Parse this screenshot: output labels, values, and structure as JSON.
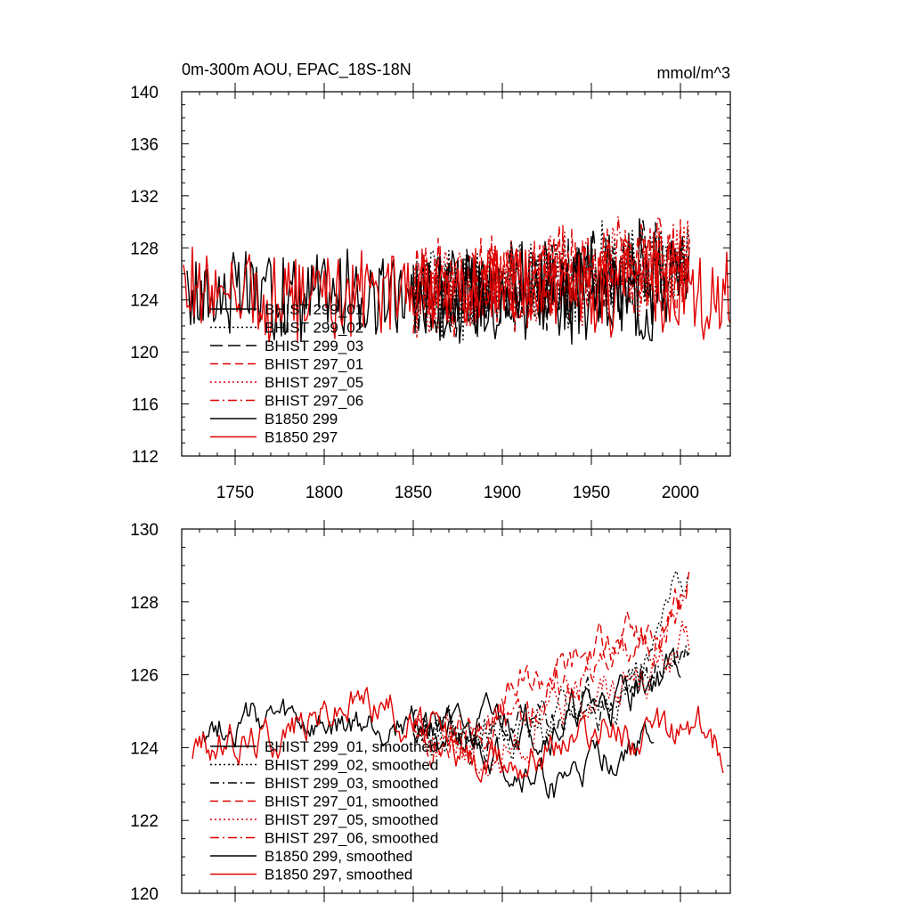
{
  "chart_data": [
    {
      "type": "line",
      "title": "0m-300m AOU, EPAC_18S-18N",
      "units_label": "mmol/m^3",
      "xlim": [
        1720,
        2028
      ],
      "ylim": [
        112,
        140
      ],
      "x_ticks": [
        1750,
        1800,
        1850,
        1900,
        1950,
        2000
      ],
      "x_tick_labels": [
        "1750",
        "1800",
        "1850",
        "1900",
        "1950",
        "2000"
      ],
      "y_ticks": [
        112,
        116,
        120,
        124,
        128,
        132,
        136,
        140
      ],
      "y_tick_labels": [
        "112",
        "116",
        "120",
        "124",
        "128",
        "132",
        "136",
        "140"
      ],
      "legend": [
        "BHIST 299_01",
        "BHIST 299_02",
        "BHIST 299_03",
        "BHIST 297_01",
        "BHIST 297_05",
        "BHIST 297_06",
        "B1850 299",
        "B1850 297"
      ],
      "series": [
        {
          "name": "BHIST 299_01",
          "color": "#000000",
          "dash": "solid",
          "x_start": 1850,
          "x_end": 2005,
          "seed": 11,
          "amp": 3.2,
          "trend": [
            124.5,
            126.5
          ],
          "period": 1
        },
        {
          "name": "BHIST 299_02",
          "color": "#000000",
          "dash": "dot",
          "x_start": 1850,
          "x_end": 2005,
          "seed": 12,
          "amp": 3.2,
          "trend": [
            124.5,
            126.8
          ],
          "period": 1
        },
        {
          "name": "BHIST 299_03",
          "color": "#000000",
          "dash": "longdash",
          "x_start": 1850,
          "x_end": 2005,
          "seed": 13,
          "amp": 3.2,
          "trend": [
            124.5,
            126.5
          ],
          "period": 1
        },
        {
          "name": "BHIST 297_01",
          "color": "#e00000",
          "dash": "dash",
          "x_start": 1850,
          "x_end": 2005,
          "seed": 14,
          "amp": 3.2,
          "trend": [
            124.5,
            127.0
          ],
          "period": 1
        },
        {
          "name": "BHIST 297_05",
          "color": "#e00000",
          "dash": "dot",
          "x_start": 1850,
          "x_end": 2005,
          "seed": 15,
          "amp": 3.2,
          "trend": [
            124.5,
            126.8
          ],
          "period": 1
        },
        {
          "name": "BHIST 297_06",
          "color": "#e00000",
          "dash": "dashdot",
          "x_start": 1850,
          "x_end": 2005,
          "seed": 16,
          "amp": 3.2,
          "trend": [
            124.5,
            127.2
          ],
          "period": 1
        },
        {
          "name": "B1850 299",
          "color": "#000000",
          "dash": "solid",
          "x_start": 1723,
          "x_end": 1985,
          "seed": 17,
          "amp": 3.0,
          "trend": [
            124.5,
            124.0
          ],
          "period": 1
        },
        {
          "name": "B1850 297",
          "color": "#e00000",
          "dash": "solid",
          "x_start": 1721,
          "x_end": 2028,
          "seed": 18,
          "amp": 3.0,
          "trend": [
            124.5,
            124.5
          ],
          "period": 1
        }
      ]
    },
    {
      "type": "line",
      "title": "",
      "xlim": [
        1720,
        2028
      ],
      "ylim": [
        120,
        130
      ],
      "x_ticks": [
        1750,
        1800,
        1850,
        1900,
        1950,
        2000
      ],
      "x_tick_labels": [],
      "y_ticks": [
        120,
        122,
        124,
        126,
        128,
        130
      ],
      "y_tick_labels": [
        "120",
        "122",
        "124",
        "126",
        "128",
        "130"
      ],
      "legend": [
        "BHIST 299_01, smoothed",
        "BHIST 299_02, smoothed",
        "BHIST 299_03, smoothed",
        "BHIST 297_01, smoothed",
        "BHIST 297_05, smoothed",
        "BHIST 297_06, smoothed",
        "B1850 299, smoothed",
        "B1850 297, smoothed"
      ],
      "series": [
        {
          "name": "BHIST 299_01, smoothed",
          "color": "#000000",
          "dash": "solid",
          "x_start": 1850,
          "x_end": 2000,
          "seed": 21,
          "amp": 0.8,
          "anchors": [
            [
              1850,
              124.6
            ],
            [
              1880,
              124.3
            ],
            [
              1900,
              124.8
            ],
            [
              1930,
              124.7
            ],
            [
              1960,
              125.3
            ],
            [
              1985,
              126.0
            ],
            [
              2000,
              126.3
            ]
          ]
        },
        {
          "name": "BHIST 299_02, smoothed",
          "color": "#000000",
          "dash": "dot",
          "x_start": 1850,
          "x_end": 2005,
          "seed": 22,
          "amp": 0.8,
          "anchors": [
            [
              1850,
              124.8
            ],
            [
              1880,
              124.3
            ],
            [
              1900,
              124.5
            ],
            [
              1930,
              124.6
            ],
            [
              1960,
              125.4
            ],
            [
              1985,
              126.5
            ],
            [
              2005,
              129.2
            ]
          ]
        },
        {
          "name": "BHIST 299_03, smoothed",
          "color": "#000000",
          "dash": "dashdot",
          "x_start": 1850,
          "x_end": 2005,
          "seed": 23,
          "amp": 0.8,
          "anchors": [
            [
              1850,
              124.5
            ],
            [
              1880,
              124.2
            ],
            [
              1900,
              124.4
            ],
            [
              1930,
              124.8
            ],
            [
              1960,
              125.2
            ],
            [
              1985,
              126.0
            ],
            [
              2005,
              126.8
            ]
          ]
        },
        {
          "name": "BHIST 297_01, smoothed",
          "color": "#e00000",
          "dash": "dash",
          "x_start": 1850,
          "x_end": 2005,
          "seed": 24,
          "amp": 0.8,
          "anchors": [
            [
              1850,
              124.4
            ],
            [
              1880,
              124.0
            ],
            [
              1910,
              125.6
            ],
            [
              1940,
              126.3
            ],
            [
              1960,
              126.9
            ],
            [
              1985,
              127.0
            ],
            [
              2005,
              128.8
            ]
          ]
        },
        {
          "name": "BHIST 297_05, smoothed",
          "color": "#e00000",
          "dash": "dot",
          "x_start": 1850,
          "x_end": 2005,
          "seed": 25,
          "amp": 0.8,
          "anchors": [
            [
              1850,
              124.6
            ],
            [
              1880,
              124.0
            ],
            [
              1900,
              123.6
            ],
            [
              1930,
              125.0
            ],
            [
              1960,
              125.8
            ],
            [
              1985,
              126.2
            ],
            [
              2005,
              126.8
            ]
          ]
        },
        {
          "name": "BHIST 297_06, smoothed",
          "color": "#e00000",
          "dash": "dashdot",
          "x_start": 1850,
          "x_end": 2005,
          "seed": 26,
          "amp": 0.8,
          "anchors": [
            [
              1850,
              124.7
            ],
            [
              1880,
              124.2
            ],
            [
              1910,
              125.0
            ],
            [
              1940,
              126.0
            ],
            [
              1960,
              126.5
            ],
            [
              1985,
              127.0
            ],
            [
              2005,
              128.4
            ]
          ]
        },
        {
          "name": "B1850 299, smoothed",
          "color": "#000000",
          "dash": "solid",
          "x_start": 1732,
          "x_end": 1985,
          "seed": 27,
          "amp": 0.7,
          "anchors": [
            [
              1732,
              124.6
            ],
            [
              1760,
              124.8
            ],
            [
              1800,
              124.4
            ],
            [
              1850,
              124.8
            ],
            [
              1900,
              123.6
            ],
            [
              1930,
              122.9
            ],
            [
              1960,
              123.8
            ],
            [
              1985,
              124.3
            ]
          ]
        },
        {
          "name": "B1850 297, smoothed",
          "color": "#e00000",
          "dash": "solid",
          "x_start": 1726,
          "x_end": 2024,
          "seed": 28,
          "amp": 0.8,
          "anchors": [
            [
              1726,
              124.0
            ],
            [
              1760,
              124.2
            ],
            [
              1800,
              125.0
            ],
            [
              1830,
              125.4
            ],
            [
              1850,
              124.7
            ],
            [
              1890,
              123.4
            ],
            [
              1930,
              124.2
            ],
            [
              1960,
              124.6
            ],
            [
              1985,
              124.2
            ],
            [
              2010,
              124.6
            ],
            [
              2024,
              123.8
            ]
          ]
        }
      ]
    }
  ]
}
